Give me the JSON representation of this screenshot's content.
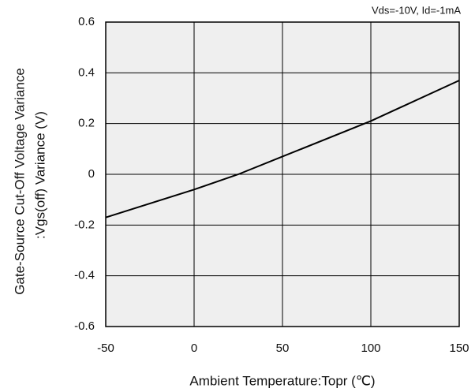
{
  "chart_data": {
    "type": "line",
    "annotation": "Vds=-10V, Id=-1mA",
    "ylabel": [
      "Gate-Source Cut-Off Voltage Variance",
      ":Vgs(off) Variance  (V)"
    ],
    "xlabel": "Ambient Temperature:Topr (℃)",
    "x": [
      -50,
      0,
      25,
      50,
      100,
      150
    ],
    "values": [
      -0.17,
      -0.06,
      0.0,
      0.07,
      0.21,
      0.37
    ],
    "color": "#000000",
    "xlim": [
      -50,
      150
    ],
    "xticks": [
      -50,
      0,
      50,
      100,
      150
    ],
    "ylim": [
      -0.6,
      0.6
    ],
    "yticks": [
      -0.6,
      -0.4,
      -0.2,
      0,
      0.2,
      0.4,
      0.6
    ],
    "grid": true
  }
}
